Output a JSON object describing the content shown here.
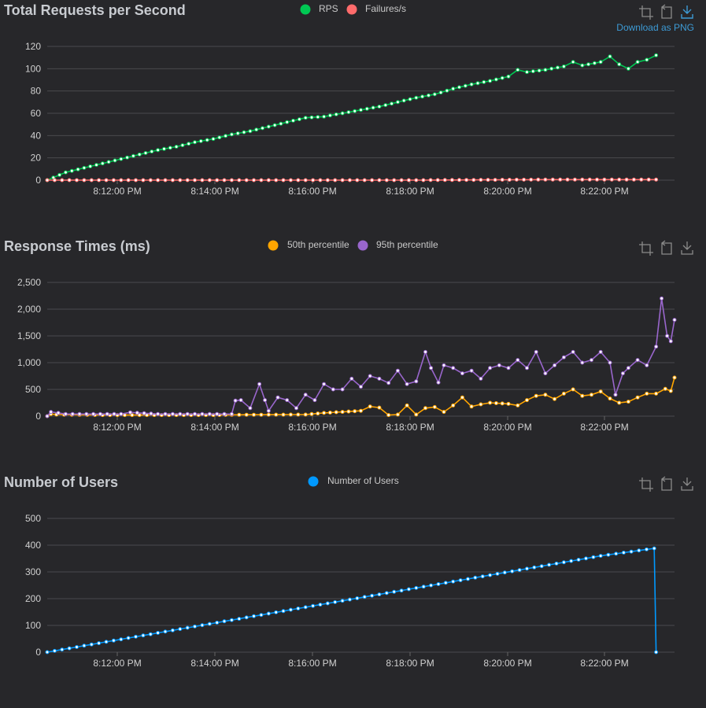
{
  "toolbar": {
    "download_label": "Download as PNG"
  },
  "charts": [
    {
      "id": "rps",
      "title": "Total Requests per Second",
      "show_download_label": true,
      "yticks": [
        "0",
        "20",
        "40",
        "60",
        "80",
        "100",
        "120"
      ],
      "ymax": 120,
      "xticks": [
        "8:12:00 PM",
        "8:14:00 PM",
        "8:16:00 PM",
        "8:18:00 PM",
        "8:20:00 PM",
        "8:22:00 PM"
      ],
      "legend": [
        {
          "name": "RPS",
          "color": "#00c853"
        },
        {
          "name": "Failures/s",
          "color": "#ff6b6b"
        }
      ]
    },
    {
      "id": "resp",
      "title": "Response Times (ms)",
      "show_download_label": false,
      "yticks": [
        "0",
        "500",
        "1,000",
        "1,500",
        "2,000",
        "2,500"
      ],
      "ymax": 2500,
      "xticks": [
        "8:12:00 PM",
        "8:14:00 PM",
        "8:16:00 PM",
        "8:18:00 PM",
        "8:20:00 PM",
        "8:22:00 PM"
      ],
      "legend": [
        {
          "name": "50th percentile",
          "color": "#ffa500"
        },
        {
          "name": "95th percentile",
          "color": "#9966cc"
        }
      ]
    },
    {
      "id": "users",
      "title": "Number of Users",
      "show_download_label": false,
      "yticks": [
        "0",
        "100",
        "200",
        "300",
        "400",
        "500"
      ],
      "ymax": 500,
      "xticks": [
        "8:12:00 PM",
        "8:14:00 PM",
        "8:16:00 PM",
        "8:18:00 PM",
        "8:20:00 PM",
        "8:22:00 PM"
      ],
      "legend": [
        {
          "name": "Number of Users",
          "color": "#0099ff"
        }
      ]
    }
  ],
  "chart_data": [
    {
      "type": "line",
      "title": "Total Requests per Second",
      "x_range": [
        "8:10:30 PM",
        "8:23:20 PM"
      ],
      "ylim": [
        0,
        120
      ],
      "legend_position": "top-center",
      "grid": true,
      "series": [
        {
          "name": "RPS",
          "color": "#00c853",
          "points": [
            [
              0,
              0
            ],
            [
              10,
              7
            ],
            [
              20,
              11
            ],
            [
              30,
              15
            ],
            [
              40,
              19
            ],
            [
              50,
              23
            ],
            [
              60,
              27
            ],
            [
              70,
              30
            ],
            [
              80,
              34
            ],
            [
              90,
              37
            ],
            [
              100,
              41
            ],
            [
              110,
              44
            ],
            [
              120,
              48
            ],
            [
              130,
              52
            ],
            [
              140,
              56
            ],
            [
              150,
              57
            ],
            [
              160,
              60
            ],
            [
              170,
              63
            ],
            [
              180,
              66
            ],
            [
              190,
              70
            ],
            [
              200,
              74
            ],
            [
              210,
              77
            ],
            [
              220,
              82
            ],
            [
              230,
              86
            ],
            [
              240,
              89
            ],
            [
              250,
              93
            ],
            [
              255,
              99
            ],
            [
              260,
              97
            ],
            [
              270,
              99
            ],
            [
              280,
              102
            ],
            [
              285,
              106
            ],
            [
              290,
              103
            ],
            [
              300,
              106
            ],
            [
              305,
              111
            ],
            [
              310,
              104
            ],
            [
              315,
              100
            ],
            [
              320,
              106
            ],
            [
              325,
              108
            ],
            [
              330,
              112
            ]
          ]
        },
        {
          "name": "Failures/s",
          "color": "#ff6b6b",
          "points": [
            [
              0,
              0
            ],
            [
              100,
              0
            ],
            [
              200,
              0
            ],
            [
              270,
              0.5
            ],
            [
              330,
              0.5
            ]
          ]
        }
      ]
    },
    {
      "type": "line",
      "title": "Response Times (ms)",
      "x_range": [
        "8:10:30 PM",
        "8:23:20 PM"
      ],
      "ylim": [
        0,
        2500
      ],
      "legend_position": "top-center",
      "grid": true,
      "series": [
        {
          "name": "50th percentile",
          "color": "#ffa500",
          "points": [
            [
              0,
              0
            ],
            [
              2,
              40
            ],
            [
              5,
              30
            ],
            [
              30,
              20
            ],
            [
              90,
              20
            ],
            [
              100,
              25
            ],
            [
              140,
              30
            ],
            [
              150,
              60
            ],
            [
              160,
              80
            ],
            [
              170,
              100
            ],
            [
              175,
              180
            ],
            [
              180,
              160
            ],
            [
              185,
              20
            ],
            [
              190,
              30
            ],
            [
              195,
              200
            ],
            [
              200,
              30
            ],
            [
              205,
              150
            ],
            [
              210,
              170
            ],
            [
              215,
              80
            ],
            [
              220,
              200
            ],
            [
              225,
              350
            ],
            [
              230,
              180
            ],
            [
              235,
              220
            ],
            [
              240,
              250
            ],
            [
              250,
              230
            ],
            [
              255,
              200
            ],
            [
              260,
              300
            ],
            [
              265,
              380
            ],
            [
              270,
              400
            ],
            [
              275,
              320
            ],
            [
              280,
              420
            ],
            [
              285,
              500
            ],
            [
              290,
              380
            ],
            [
              295,
              400
            ],
            [
              300,
              460
            ],
            [
              305,
              330
            ],
            [
              310,
              250
            ],
            [
              315,
              270
            ],
            [
              320,
              350
            ],
            [
              325,
              420
            ],
            [
              330,
              420
            ],
            [
              335,
              510
            ],
            [
              338,
              470
            ],
            [
              340,
              720
            ]
          ]
        },
        {
          "name": "95th percentile",
          "color": "#9966cc",
          "points": [
            [
              0,
              0
            ],
            [
              2,
              80
            ],
            [
              10,
              40
            ],
            [
              40,
              40
            ],
            [
              45,
              70
            ],
            [
              60,
              40
            ],
            [
              100,
              40
            ],
            [
              102,
              290
            ],
            [
              105,
              300
            ],
            [
              110,
              150
            ],
            [
              115,
              600
            ],
            [
              118,
              300
            ],
            [
              120,
              100
            ],
            [
              125,
              350
            ],
            [
              130,
              300
            ],
            [
              135,
              150
            ],
            [
              140,
              400
            ],
            [
              145,
              300
            ],
            [
              150,
              600
            ],
            [
              155,
              500
            ],
            [
              160,
              500
            ],
            [
              165,
              700
            ],
            [
              170,
              550
            ],
            [
              175,
              750
            ],
            [
              180,
              700
            ],
            [
              185,
              620
            ],
            [
              190,
              850
            ],
            [
              195,
              600
            ],
            [
              200,
              650
            ],
            [
              205,
              1200
            ],
            [
              208,
              900
            ],
            [
              212,
              630
            ],
            [
              215,
              950
            ],
            [
              220,
              900
            ],
            [
              225,
              800
            ],
            [
              230,
              850
            ],
            [
              235,
              700
            ],
            [
              240,
              900
            ],
            [
              245,
              950
            ],
            [
              250,
              900
            ],
            [
              255,
              1050
            ],
            [
              260,
              900
            ],
            [
              265,
              1200
            ],
            [
              270,
              800
            ],
            [
              275,
              950
            ],
            [
              280,
              1100
            ],
            [
              285,
              1200
            ],
            [
              290,
              1000
            ],
            [
              295,
              1050
            ],
            [
              300,
              1200
            ],
            [
              305,
              1000
            ],
            [
              308,
              400
            ],
            [
              312,
              800
            ],
            [
              315,
              900
            ],
            [
              320,
              1050
            ],
            [
              325,
              950
            ],
            [
              330,
              1300
            ],
            [
              333,
              2200
            ],
            [
              336,
              1500
            ],
            [
              338,
              1400
            ],
            [
              340,
              1800
            ]
          ]
        }
      ]
    },
    {
      "type": "line",
      "title": "Number of Users",
      "x_range": [
        "8:10:30 PM",
        "8:23:20 PM"
      ],
      "ylim": [
        0,
        500
      ],
      "legend_position": "top-center",
      "grid": true,
      "series": [
        {
          "name": "Number of Users",
          "color": "#0099ff",
          "points": [
            [
              0,
              0
            ],
            [
              100,
              120
            ],
            [
              200,
              240
            ],
            [
              300,
              360
            ],
            [
              329,
              388
            ],
            [
              330,
              0
            ]
          ]
        }
      ]
    }
  ]
}
